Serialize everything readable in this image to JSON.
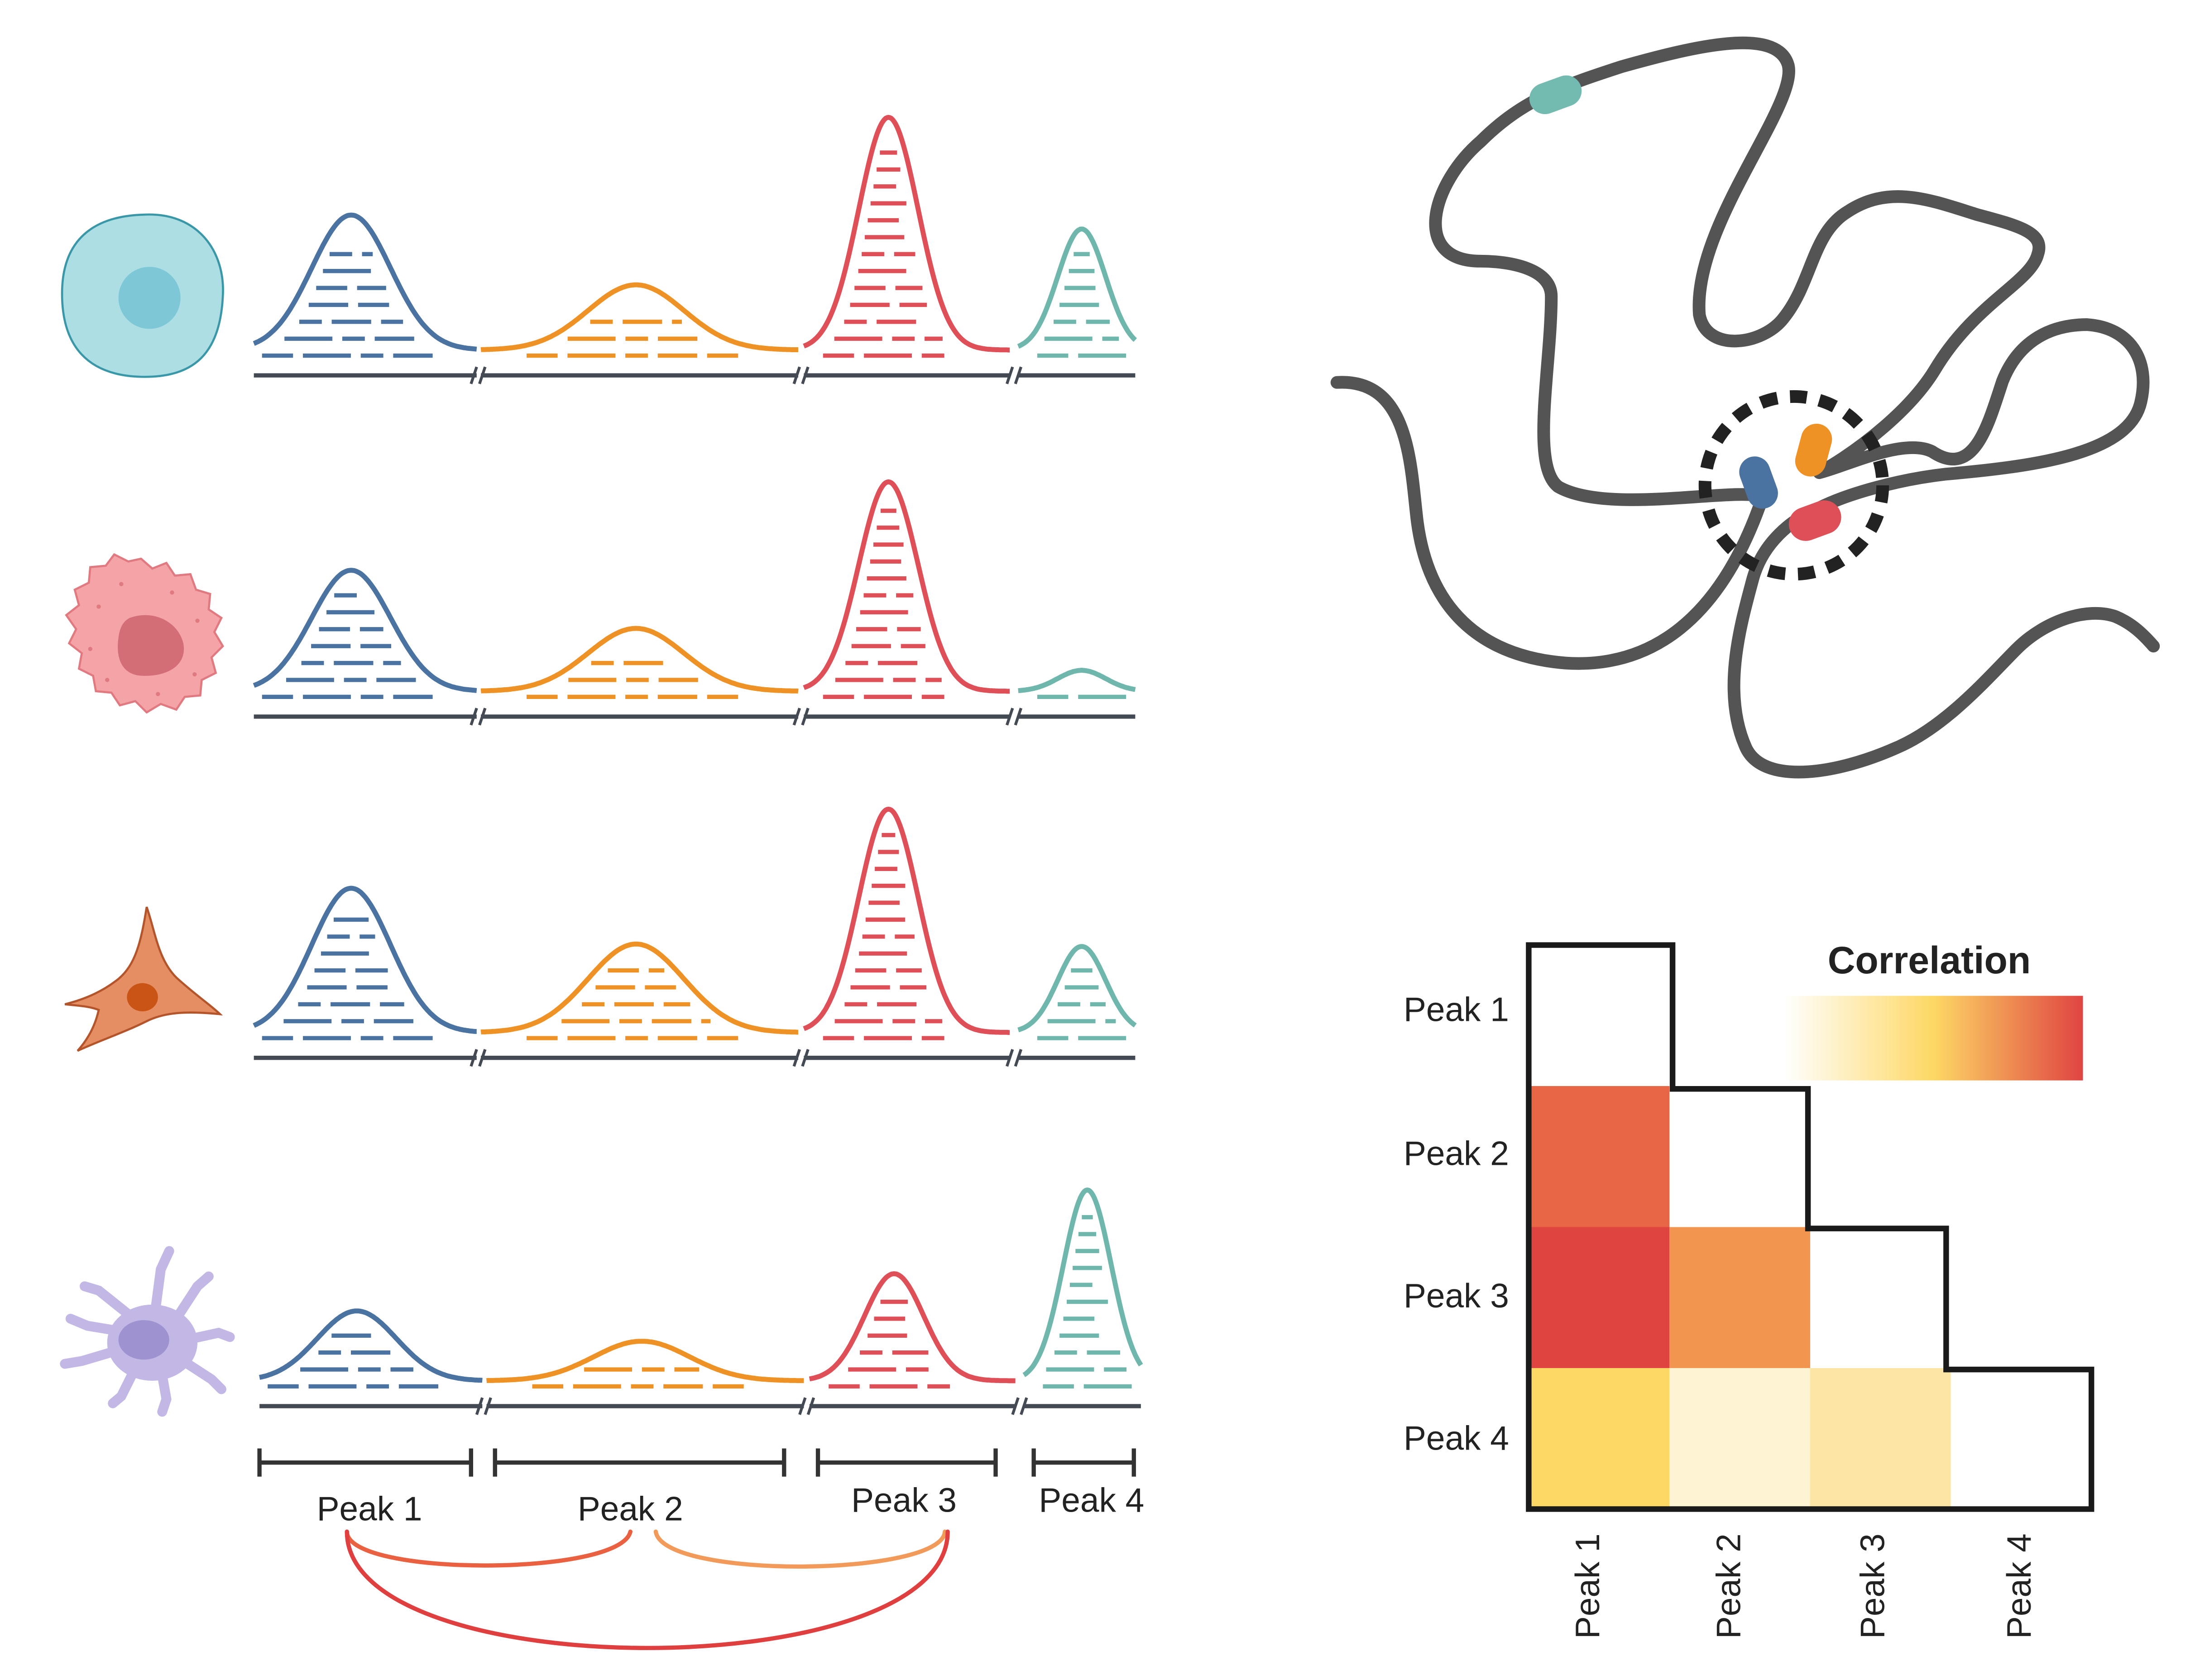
{
  "peaks": {
    "labels": [
      "Peak 1",
      "Peak 2",
      "Peak 3",
      "Peak 4"
    ],
    "colors": [
      "#4a73a1",
      "#ef9226",
      "#df4f57",
      "#6fb6ad"
    ]
  },
  "cells": [
    {
      "type": "round-cell",
      "heights": [
        0.58,
        0.28,
        1.0,
        0.52
      ]
    },
    {
      "type": "spiky-cell",
      "heights": [
        0.52,
        0.27,
        0.9,
        0.09
      ]
    },
    {
      "type": "stellate-cell",
      "heights": [
        0.62,
        0.38,
        0.96,
        0.37
      ]
    },
    {
      "type": "dendritic-cell",
      "heights": [
        0.3,
        0.17,
        0.46,
        0.82
      ]
    }
  ],
  "heatmap": {
    "legend_title": "Correlation",
    "row_labels": [
      "Peak 1",
      "Peak 2",
      "Peak 3",
      "Peak 4"
    ],
    "col_labels": [
      "Peak 1",
      "Peak 2",
      "Peak 3",
      "Peak 4"
    ],
    "cell_colors": [
      [
        null,
        null,
        null,
        null
      ],
      [
        "#e86645",
        null,
        null,
        null
      ],
      [
        "#e04441",
        "#f2954f",
        null,
        null
      ],
      [
        "#fdd865",
        "#fef3d3",
        "#fde6a5",
        null
      ]
    ],
    "legend_gradient": [
      "#ffffff",
      "#fdd865",
      "#e04441"
    ]
  }
}
